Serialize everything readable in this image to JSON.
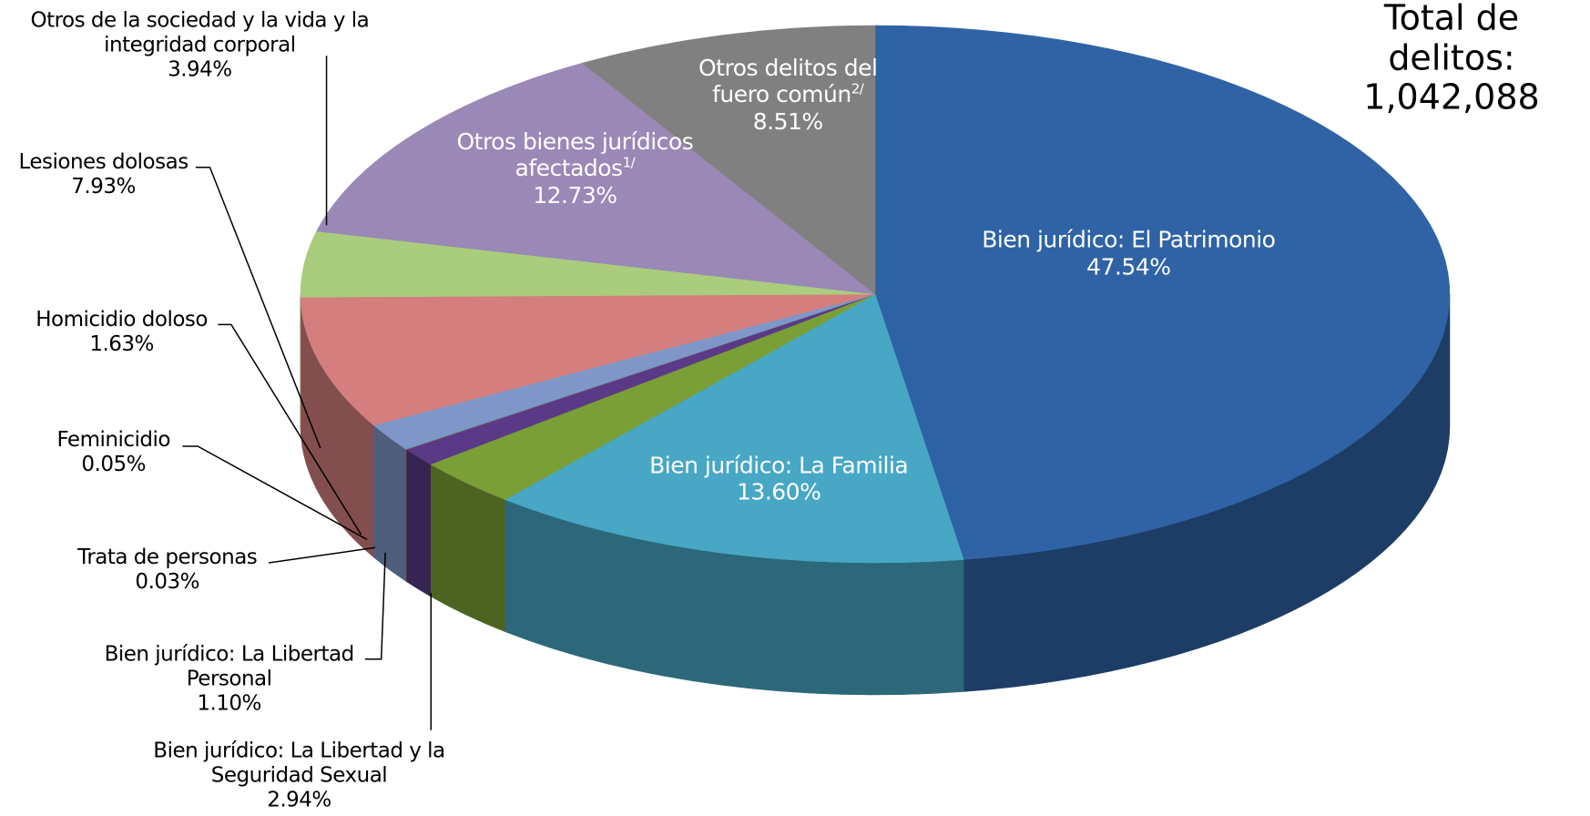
{
  "chart_data": {
    "type": "pie",
    "title": "Total de delitos:",
    "total": {
      "value": 1042088,
      "label": "1,042,088"
    },
    "categories": [
      "Bien jurídico: El Patrimonio",
      "Bien jurídico: La Familia",
      "Bien jurídico: La Libertad y la Seguridad Sexual",
      "Bien jurídico: La Libertad Personal",
      "Trata de personas",
      "Feminicidio",
      "Homicidio doloso",
      "Lesiones dolosas",
      "Otros de la sociedad y la vida y la integridad corporal",
      "Otros bienes jurídicos afectados",
      "Otros delitos del fuero común"
    ],
    "footnote_marks": [
      null,
      null,
      null,
      null,
      null,
      null,
      null,
      null,
      null,
      "1/",
      "2/"
    ],
    "values": [
      47.54,
      13.6,
      2.94,
      1.1,
      0.03,
      0.05,
      1.63,
      7.93,
      3.94,
      12.73,
      8.51
    ],
    "value_labels": [
      "47.54%",
      "13.60%",
      "2.94%",
      "1.10%",
      "0.03%",
      "0.05%",
      "1.63%",
      "7.93%",
      "3.94%",
      "12.73%",
      "8.51%"
    ],
    "colors": [
      "#2f63a6",
      "#47a7c4",
      "#7a9f36",
      "#5a3a86",
      "#c0504d",
      "#4bacc6",
      "#7f97c8",
      "#d47e7e",
      "#a9cc7d",
      "#9a88b7",
      "#808080"
    ]
  }
}
